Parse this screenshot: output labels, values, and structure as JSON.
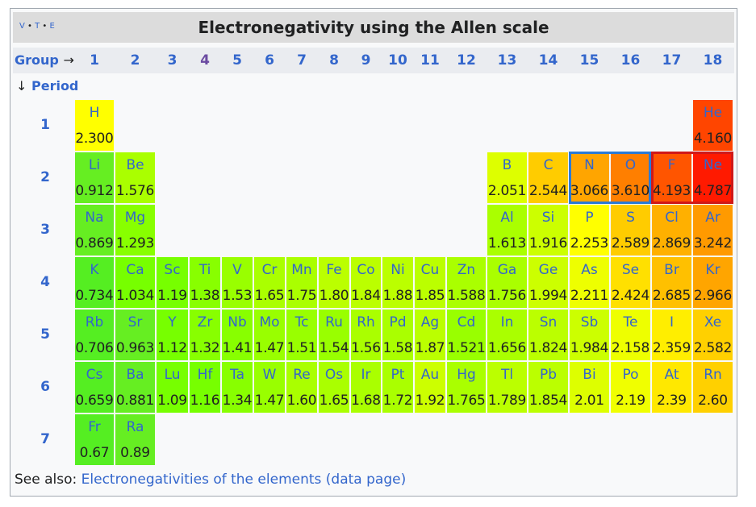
{
  "vte": {
    "v": "V",
    "t": "T",
    "e": "E"
  },
  "title": "Electronegativity using the Allen scale",
  "group_label": "Group",
  "group_arrow": "→",
  "period_label": "Period",
  "period_arrow": "↓",
  "groups": [
    "1",
    "2",
    "3",
    "4",
    "5",
    "6",
    "7",
    "8",
    "9",
    "10",
    "11",
    "12",
    "13",
    "14",
    "15",
    "16",
    "17",
    "18"
  ],
  "periods": [
    "1",
    "2",
    "3",
    "4",
    "5",
    "6",
    "7"
  ],
  "elements": [
    {
      "sym": "H",
      "val": "2.300",
      "g": 1,
      "p": 1,
      "color": "#ffff00"
    },
    {
      "sym": "He",
      "val": "4.160",
      "g": 18,
      "p": 1,
      "color": "#ff4500"
    },
    {
      "sym": "Li",
      "val": "0.912",
      "g": 1,
      "p": 2,
      "color": "#66ee22"
    },
    {
      "sym": "Be",
      "val": "1.576",
      "g": 2,
      "p": 2,
      "color": "#aaff00"
    },
    {
      "sym": "B",
      "val": "2.051",
      "g": 13,
      "p": 2,
      "color": "#ddff00"
    },
    {
      "sym": "C",
      "val": "2.544",
      "g": 14,
      "p": 2,
      "color": "#ffcc00"
    },
    {
      "sym": "N",
      "val": "3.066",
      "g": 15,
      "p": 2,
      "color": "#ffa500"
    },
    {
      "sym": "O",
      "val": "3.610",
      "g": 16,
      "p": 2,
      "color": "#ff7f00"
    },
    {
      "sym": "F",
      "val": "4.193",
      "g": 17,
      "p": 2,
      "color": "#ff5500"
    },
    {
      "sym": "Ne",
      "val": "4.787",
      "g": 18,
      "p": 2,
      "color": "#ff1a00"
    },
    {
      "sym": "Na",
      "val": "0.869",
      "g": 1,
      "p": 3,
      "color": "#66ee22"
    },
    {
      "sym": "Mg",
      "val": "1.293",
      "g": 2,
      "p": 3,
      "color": "#88ff00"
    },
    {
      "sym": "Al",
      "val": "1.613",
      "g": 13,
      "p": 3,
      "color": "#aaff00"
    },
    {
      "sym": "Si",
      "val": "1.916",
      "g": 14,
      "p": 3,
      "color": "#ccff00"
    },
    {
      "sym": "P",
      "val": "2.253",
      "g": 15,
      "p": 3,
      "color": "#ffff00"
    },
    {
      "sym": "S",
      "val": "2.589",
      "g": 16,
      "p": 3,
      "color": "#ffcc00"
    },
    {
      "sym": "Cl",
      "val": "2.869",
      "g": 17,
      "p": 3,
      "color": "#ffb000"
    },
    {
      "sym": "Ar",
      "val": "3.242",
      "g": 18,
      "p": 3,
      "color": "#ff9a00"
    },
    {
      "sym": "K",
      "val": "0.734",
      "g": 1,
      "p": 4,
      "color": "#55ee22"
    },
    {
      "sym": "Ca",
      "val": "1.034",
      "g": 2,
      "p": 4,
      "color": "#77ff00"
    },
    {
      "sym": "Sc",
      "val": "1.19",
      "g": 3,
      "p": 4,
      "color": "#77ff00"
    },
    {
      "sym": "Ti",
      "val": "1.38",
      "g": 4,
      "p": 4,
      "color": "#88ff00"
    },
    {
      "sym": "V",
      "val": "1.53",
      "g": 5,
      "p": 4,
      "color": "#99ff00"
    },
    {
      "sym": "Cr",
      "val": "1.65",
      "g": 6,
      "p": 4,
      "color": "#aaff00"
    },
    {
      "sym": "Mn",
      "val": "1.75",
      "g": 7,
      "p": 4,
      "color": "#aaff00"
    },
    {
      "sym": "Fe",
      "val": "1.80",
      "g": 8,
      "p": 4,
      "color": "#bbff00"
    },
    {
      "sym": "Co",
      "val": "1.84",
      "g": 9,
      "p": 4,
      "color": "#bbff00"
    },
    {
      "sym": "Ni",
      "val": "1.88",
      "g": 10,
      "p": 4,
      "color": "#bbff00"
    },
    {
      "sym": "Cu",
      "val": "1.85",
      "g": 11,
      "p": 4,
      "color": "#bbff00"
    },
    {
      "sym": "Zn",
      "val": "1.588",
      "g": 12,
      "p": 4,
      "color": "#aaff00"
    },
    {
      "sym": "Ga",
      "val": "1.756",
      "g": 13,
      "p": 4,
      "color": "#aaff00"
    },
    {
      "sym": "Ge",
      "val": "1.994",
      "g": 14,
      "p": 4,
      "color": "#ccff00"
    },
    {
      "sym": "As",
      "val": "2.211",
      "g": 15,
      "p": 4,
      "color": "#eeff00"
    },
    {
      "sym": "Se",
      "val": "2.424",
      "g": 16,
      "p": 4,
      "color": "#ffe000"
    },
    {
      "sym": "Br",
      "val": "2.685",
      "g": 17,
      "p": 4,
      "color": "#ffc000"
    },
    {
      "sym": "Kr",
      "val": "2.966",
      "g": 18,
      "p": 4,
      "color": "#ffa500"
    },
    {
      "sym": "Rb",
      "val": "0.706",
      "g": 1,
      "p": 5,
      "color": "#55ee22"
    },
    {
      "sym": "Sr",
      "val": "0.963",
      "g": 2,
      "p": 5,
      "color": "#66ee22"
    },
    {
      "sym": "Y",
      "val": "1.12",
      "g": 3,
      "p": 5,
      "color": "#77ff00"
    },
    {
      "sym": "Zr",
      "val": "1.32",
      "g": 4,
      "p": 5,
      "color": "#88ff00"
    },
    {
      "sym": "Nb",
      "val": "1.41",
      "g": 5,
      "p": 5,
      "color": "#88ff00"
    },
    {
      "sym": "Mo",
      "val": "1.47",
      "g": 6,
      "p": 5,
      "color": "#99ff00"
    },
    {
      "sym": "Tc",
      "val": "1.51",
      "g": 7,
      "p": 5,
      "color": "#99ff00"
    },
    {
      "sym": "Ru",
      "val": "1.54",
      "g": 8,
      "p": 5,
      "color": "#99ff00"
    },
    {
      "sym": "Rh",
      "val": "1.56",
      "g": 9,
      "p": 5,
      "color": "#aaff00"
    },
    {
      "sym": "Pd",
      "val": "1.58",
      "g": 10,
      "p": 5,
      "color": "#aaff00"
    },
    {
      "sym": "Ag",
      "val": "1.87",
      "g": 11,
      "p": 5,
      "color": "#bbff00"
    },
    {
      "sym": "Cd",
      "val": "1.521",
      "g": 12,
      "p": 5,
      "color": "#99ff00"
    },
    {
      "sym": "In",
      "val": "1.656",
      "g": 13,
      "p": 5,
      "color": "#aaff00"
    },
    {
      "sym": "Sn",
      "val": "1.824",
      "g": 14,
      "p": 5,
      "color": "#bbff00"
    },
    {
      "sym": "Sb",
      "val": "1.984",
      "g": 15,
      "p": 5,
      "color": "#ccff00"
    },
    {
      "sym": "Te",
      "val": "2.158",
      "g": 16,
      "p": 5,
      "color": "#eeff00"
    },
    {
      "sym": "I",
      "val": "2.359",
      "g": 17,
      "p": 5,
      "color": "#ffee00"
    },
    {
      "sym": "Xe",
      "val": "2.582",
      "g": 18,
      "p": 5,
      "color": "#ffd000"
    },
    {
      "sym": "Cs",
      "val": "0.659",
      "g": 1,
      "p": 6,
      "color": "#55ee22"
    },
    {
      "sym": "Ba",
      "val": "0.881",
      "g": 2,
      "p": 6,
      "color": "#66ee22"
    },
    {
      "sym": "Lu",
      "val": "1.09",
      "g": 3,
      "p": 6,
      "color": "#77ff00"
    },
    {
      "sym": "Hf",
      "val": "1.16",
      "g": 4,
      "p": 6,
      "color": "#77ff00"
    },
    {
      "sym": "Ta",
      "val": "1.34",
      "g": 5,
      "p": 6,
      "color": "#88ff00"
    },
    {
      "sym": "W",
      "val": "1.47",
      "g": 6,
      "p": 6,
      "color": "#99ff00"
    },
    {
      "sym": "Re",
      "val": "1.60",
      "g": 7,
      "p": 6,
      "color": "#aaff00"
    },
    {
      "sym": "Os",
      "val": "1.65",
      "g": 8,
      "p": 6,
      "color": "#aaff00"
    },
    {
      "sym": "Ir",
      "val": "1.68",
      "g": 9,
      "p": 6,
      "color": "#aaff00"
    },
    {
      "sym": "Pt",
      "val": "1.72",
      "g": 10,
      "p": 6,
      "color": "#aaff00"
    },
    {
      "sym": "Au",
      "val": "1.92",
      "g": 11,
      "p": 6,
      "color": "#ccff00"
    },
    {
      "sym": "Hg",
      "val": "1.765",
      "g": 12,
      "p": 6,
      "color": "#aaff00"
    },
    {
      "sym": "Tl",
      "val": "1.789",
      "g": 13,
      "p": 6,
      "color": "#bbff00"
    },
    {
      "sym": "Pb",
      "val": "1.854",
      "g": 14,
      "p": 6,
      "color": "#bbff00"
    },
    {
      "sym": "Bi",
      "val": "2.01",
      "g": 15,
      "p": 6,
      "color": "#ddff00"
    },
    {
      "sym": "Po",
      "val": "2.19",
      "g": 16,
      "p": 6,
      "color": "#f0ff00"
    },
    {
      "sym": "At",
      "val": "2.39",
      "g": 17,
      "p": 6,
      "color": "#ffe800"
    },
    {
      "sym": "Rn",
      "val": "2.60",
      "g": 18,
      "p": 6,
      "color": "#ffd000"
    },
    {
      "sym": "Fr",
      "val": "0.67",
      "g": 1,
      "p": 7,
      "color": "#55ee22"
    },
    {
      "sym": "Ra",
      "val": "0.89",
      "g": 2,
      "p": 7,
      "color": "#66ee22"
    }
  ],
  "highlight_blue": [
    "N",
    "O"
  ],
  "highlight_red": [
    "F",
    "Ne"
  ],
  "footer": {
    "prefix": "See also:",
    "link": "Electronegativities of the elements (data page)"
  }
}
